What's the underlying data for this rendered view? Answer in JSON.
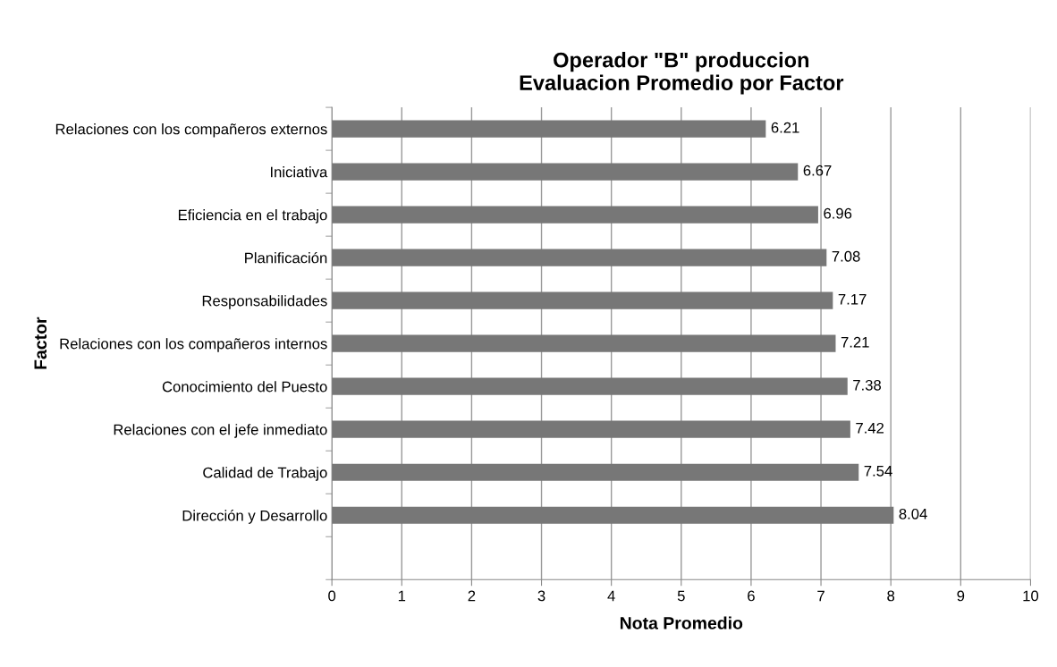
{
  "chart_data": {
    "type": "bar",
    "orientation": "horizontal",
    "title": "Operador \"B\" produccion\nEvaluacion Promedio por Factor",
    "xlabel": "Nota Promedio",
    "ylabel": "Factor",
    "categories": [
      "Relaciones con los compañeros externos",
      "Iniciativa",
      "Eficiencia en el trabajo",
      "Planificación",
      "Responsabilidades",
      "Relaciones con los compañeros internos",
      "Conocimiento del Puesto",
      "Relaciones con el jefe inmediato",
      "Calidad de Trabajo",
      "Dirección y Desarrollo",
      null
    ],
    "values": [
      6.21,
      6.67,
      6.96,
      7.08,
      7.17,
      7.21,
      7.38,
      7.42,
      7.54,
      8.04,
      null
    ],
    "color": "#777777",
    "data_labels": true,
    "grid": "x",
    "legend": false,
    "xlim": [
      0,
      10
    ],
    "xticks": [
      0,
      1,
      2,
      3,
      4,
      5,
      6,
      7,
      8,
      9,
      10
    ]
  }
}
